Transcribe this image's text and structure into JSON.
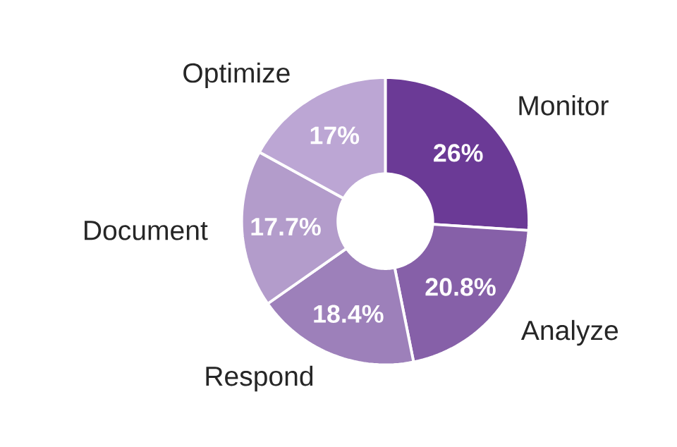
{
  "chart_data": {
    "type": "donut",
    "categories": [
      "Monitor",
      "Analyze",
      "Respond",
      "Document",
      "Optimize"
    ],
    "values": [
      26,
      20.8,
      18.4,
      17.7,
      17
    ],
    "value_labels": [
      "26%",
      "20.8%",
      "18.4%",
      "17.7%",
      "17%"
    ],
    "colors": [
      "#6b3a96",
      "#8660a8",
      "#9d80ba",
      "#b39ccb",
      "#bca6d4"
    ]
  }
}
